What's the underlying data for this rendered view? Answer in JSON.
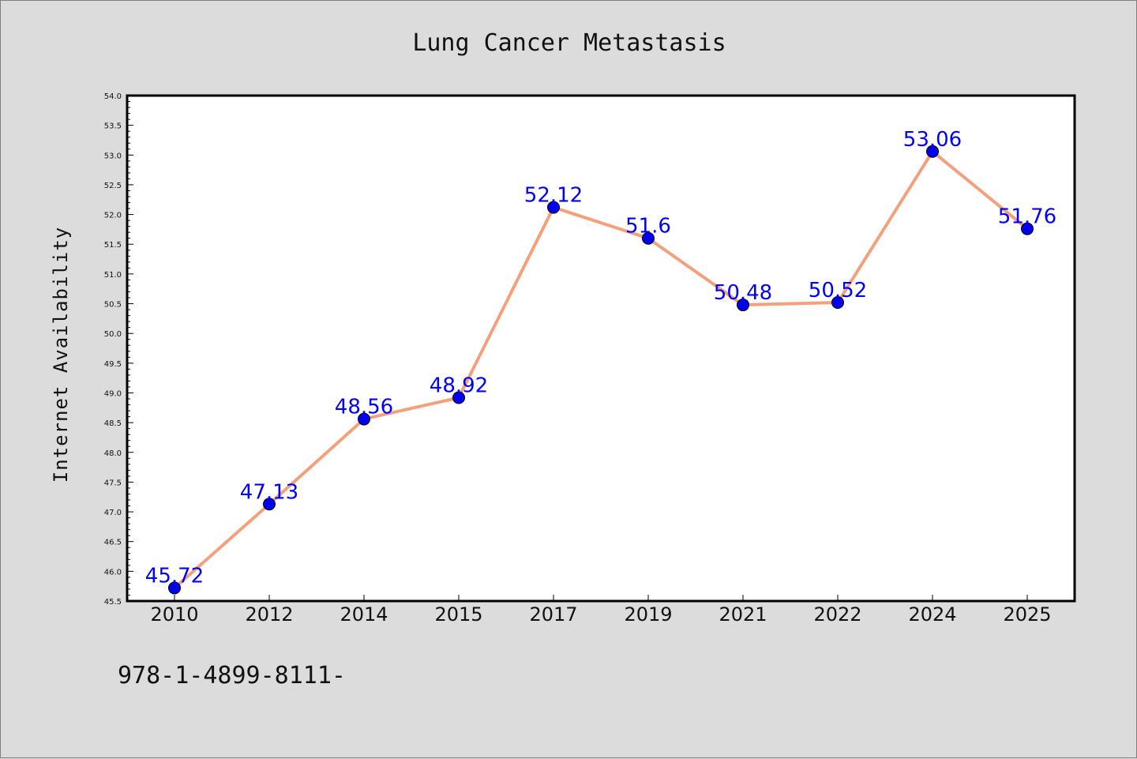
{
  "chart_data": {
    "type": "line",
    "title": "Lung Cancer Metastasis",
    "xlabel": "",
    "ylabel": "Internet Availability",
    "categories": [
      "2010",
      "2012",
      "2014",
      "2015",
      "2017",
      "2019",
      "2021",
      "2022",
      "2024",
      "2025"
    ],
    "values": [
      45.72,
      47.13,
      48.56,
      48.92,
      52.12,
      51.6,
      50.48,
      50.52,
      53.06,
      51.76
    ],
    "data_labels": [
      "45.72",
      "47.13",
      "48.56",
      "48.92",
      "52.12",
      "51.6",
      "50.48",
      "50.52",
      "53.06",
      "51.76"
    ],
    "ylim": [
      45.5,
      54.0
    ],
    "yticks": [
      "45.5",
      "46.0",
      "46.5",
      "47.0",
      "47.5",
      "48.0",
      "48.5",
      "49.0",
      "49.5",
      "50.0",
      "50.5",
      "51.0",
      "51.5",
      "52.0",
      "52.5",
      "53.0",
      "53.5",
      "54.0"
    ],
    "grid": false,
    "legend": "none",
    "colors": {
      "line": "#f5a07c",
      "marker": "#0000ee",
      "label": "#0000ff",
      "background": "#dcdcdc",
      "plot_background": "#ffffff"
    }
  },
  "footer": {
    "text": "978-1-4899-8111-"
  }
}
